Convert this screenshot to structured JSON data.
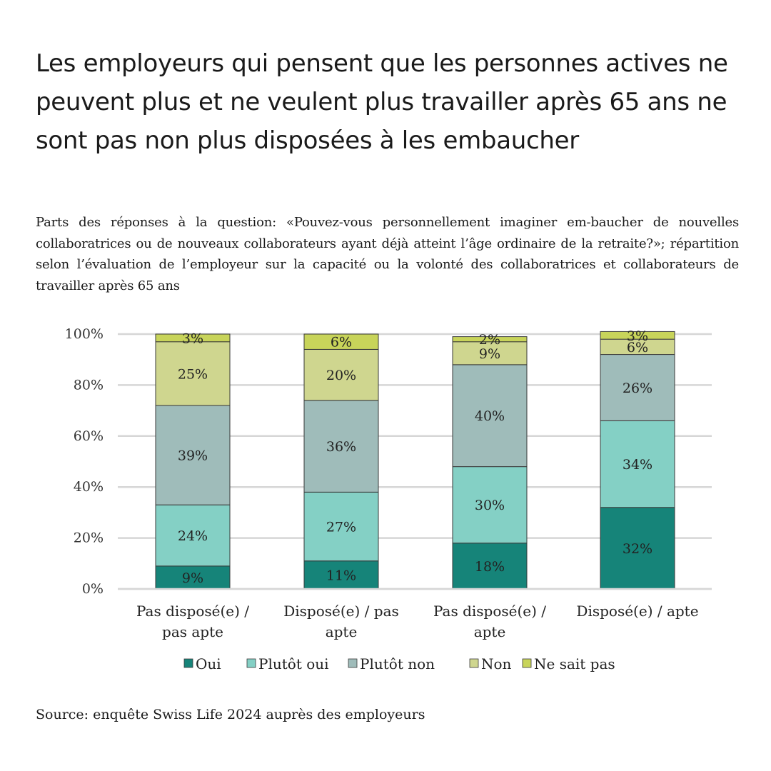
{
  "title": "Les employeurs qui pensent que les personnes actives ne peuvent plus et ne veulent plus travailler après 65 ans ne sont pas non plus disposées à les embaucher",
  "subtitle": "Parts des réponses à la question: «Pouvez-vous personnellement imaginer em-baucher de nouvelles collaboratrices ou de nouveaux collaborateurs ayant déjà atteint l’âge ordinaire de la retraite?»; répartition selon l’évaluation de l’employeur sur la capacité ou la volonté des collaboratrices et collaborateurs de travailler après 65 ans",
  "source": "Source: enquête Swiss Life 2024 auprès des employeurs",
  "chart_data": {
    "type": "bar",
    "stacked": true,
    "categories": [
      [
        "Pas disposé(e) /",
        "pas apte"
      ],
      [
        "Disposé(e) / pas",
        "apte"
      ],
      [
        "Pas disposé(e) /",
        "apte"
      ],
      [
        "Disposé(e) / apte"
      ]
    ],
    "series": [
      {
        "name": "Oui",
        "color": "#168479",
        "values": [
          9,
          11,
          18,
          32
        ],
        "labels": [
          "9%",
          "11%",
          "18%",
          "32%"
        ]
      },
      {
        "name": "Plutôt oui",
        "color": "#84d0c5",
        "values": [
          24,
          27,
          30,
          34
        ],
        "labels": [
          "24%",
          "27%",
          "30%",
          "34%"
        ]
      },
      {
        "name": "Plutôt non",
        "color": "#9fbcba",
        "values": [
          39,
          36,
          40,
          26
        ],
        "labels": [
          "39%",
          "36%",
          "40%",
          "26%"
        ]
      },
      {
        "name": "Non",
        "color": "#cfd68f",
        "values": [
          25,
          20,
          9,
          6
        ],
        "labels": [
          "25%",
          "20%",
          "9%",
          "6%"
        ]
      },
      {
        "name": "Ne sait pas",
        "color": "#c8d45a",
        "values": [
          3,
          6,
          2,
          3
        ],
        "labels": [
          "3%",
          "6%",
          "2%",
          "3%"
        ]
      }
    ],
    "y_ticks": [
      "0%",
      "20%",
      "40%",
      "60%",
      "80%",
      "100%"
    ],
    "ylim": [
      0,
      100
    ],
    "grid": true,
    "legend_position": "bottom"
  }
}
